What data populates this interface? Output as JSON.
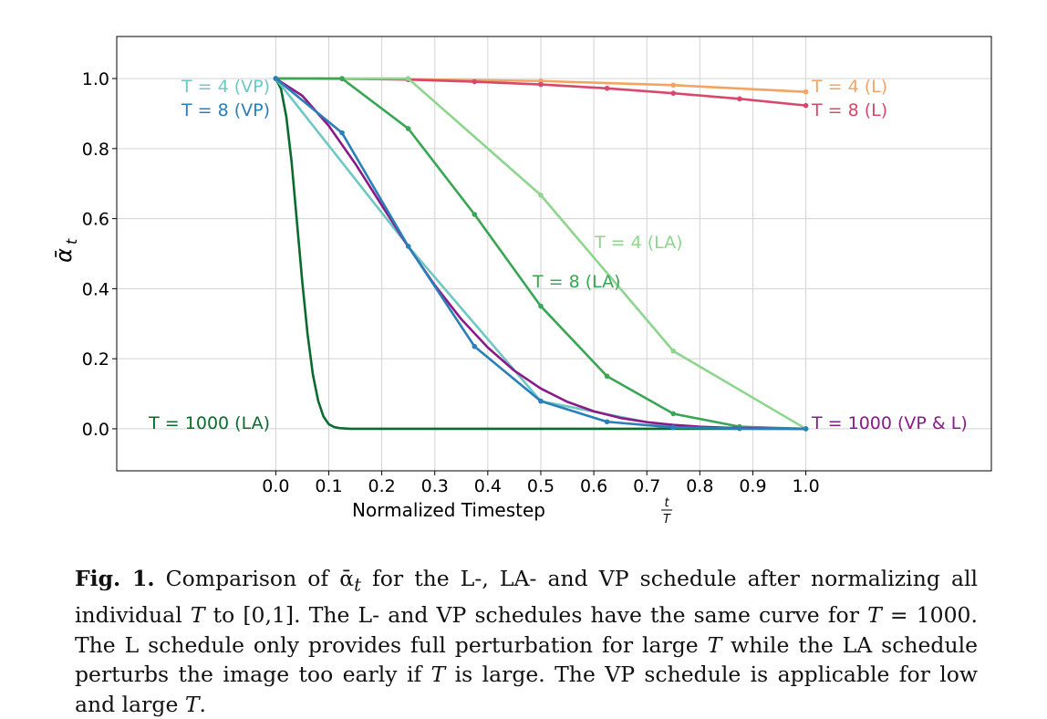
{
  "chart_data": {
    "type": "line",
    "xlabel": "Normalized Timestep",
    "xlabel_fraction": {
      "numerator": "t",
      "denominator": "T"
    },
    "ylabel": "ᾱ",
    "ylabel_subscript": "t",
    "xlim": [
      -0.3,
      1.35
    ],
    "ylim": [
      -0.12,
      1.12
    ],
    "x_ticks": [
      "0.0",
      "0.1",
      "0.2",
      "0.3",
      "0.4",
      "0.5",
      "0.6",
      "0.7",
      "0.8",
      "0.9",
      "1.0"
    ],
    "y_ticks": [
      "0.0",
      "0.2",
      "0.4",
      "0.6",
      "0.8",
      "1.0"
    ],
    "grid": true,
    "series": [
      {
        "name": "T = 4 (L)",
        "color": "#f4a460",
        "markers": true,
        "x": [
          0,
          0.25,
          0.5,
          0.75,
          1.0
        ],
        "y": [
          1.0,
          0.998,
          0.993,
          0.981,
          0.962
        ]
      },
      {
        "name": "T = 8 (L)",
        "color": "#d6496c",
        "markers": true,
        "x": [
          0,
          0.125,
          0.25,
          0.375,
          0.5,
          0.625,
          0.75,
          0.875,
          1.0
        ],
        "y": [
          1.0,
          0.9995,
          0.997,
          0.991,
          0.983,
          0.972,
          0.958,
          0.942,
          0.923
        ]
      },
      {
        "name": "T = 4 (LA)",
        "color": "#8ed58e",
        "markers": true,
        "x": [
          0,
          0.25,
          0.5,
          0.75,
          1.0
        ],
        "y": [
          1.0,
          1.0,
          0.667,
          0.222,
          0.0
        ]
      },
      {
        "name": "T = 8 (LA)",
        "color": "#3aa655",
        "markers": true,
        "x": [
          0,
          0.125,
          0.25,
          0.375,
          0.5,
          0.625,
          0.75,
          0.875,
          1.0
        ],
        "y": [
          1.0,
          1.0,
          0.857,
          0.612,
          0.35,
          0.15,
          0.043,
          0.006,
          0.0
        ]
      },
      {
        "name": "T = 4 (VP)",
        "color": "#6ec8c4",
        "markers": true,
        "x": [
          0,
          0.25,
          0.5,
          0.75,
          1.0
        ],
        "y": [
          1.0,
          0.521,
          0.079,
          0.004,
          0.0
        ]
      },
      {
        "name": "T = 8 (VP)",
        "color": "#2b7fb8",
        "markers": true,
        "x": [
          0,
          0.125,
          0.25,
          0.375,
          0.5,
          0.625,
          0.75,
          0.875,
          1.0
        ],
        "y": [
          1.0,
          0.845,
          0.521,
          0.235,
          0.079,
          0.02,
          0.004,
          0.0006,
          0.0
        ]
      },
      {
        "name": "T = 1000 (VP & L)",
        "color": "#8b1a89",
        "markers": false,
        "x": [
          0,
          0.05,
          0.1,
          0.15,
          0.2,
          0.25,
          0.3,
          0.35,
          0.4,
          0.45,
          0.5,
          0.55,
          0.6,
          0.65,
          0.7,
          0.75,
          0.8,
          0.85,
          0.9,
          0.95,
          1.0
        ],
        "y": [
          1.0,
          0.951,
          0.865,
          0.757,
          0.638,
          0.52,
          0.41,
          0.313,
          0.232,
          0.166,
          0.115,
          0.077,
          0.05,
          0.031,
          0.019,
          0.011,
          0.006,
          0.003,
          0.0016,
          0.0008,
          0.0
        ]
      },
      {
        "name": "T = 1000 (LA)",
        "color": "#0b6b2e",
        "markers": false,
        "x": [
          0,
          0.01,
          0.02,
          0.03,
          0.04,
          0.05,
          0.06,
          0.07,
          0.08,
          0.09,
          0.1,
          0.11,
          0.12,
          0.14,
          0.2,
          0.5,
          1.0
        ],
        "y": [
          1.0,
          0.97,
          0.89,
          0.76,
          0.59,
          0.42,
          0.27,
          0.155,
          0.08,
          0.035,
          0.013,
          0.005,
          0.002,
          0.0,
          0.0,
          0.0,
          0.0
        ]
      }
    ]
  },
  "caption": {
    "label": "Fig. 1.",
    "body_html": "Comparison of ᾱ<sub><i>t</i></sub> for the L-, LA- and VP schedule after normalizing all individual <i>T</i> to [0,1]. The L- and VP schedules have the same curve for <i>T</i> = 1000. The L schedule only provides full perturbation for large <i>T</i> while the LA schedule perturbs the image too early if <i>T</i> is large. The VP schedule is applicable for low and large <i>T</i>."
  }
}
